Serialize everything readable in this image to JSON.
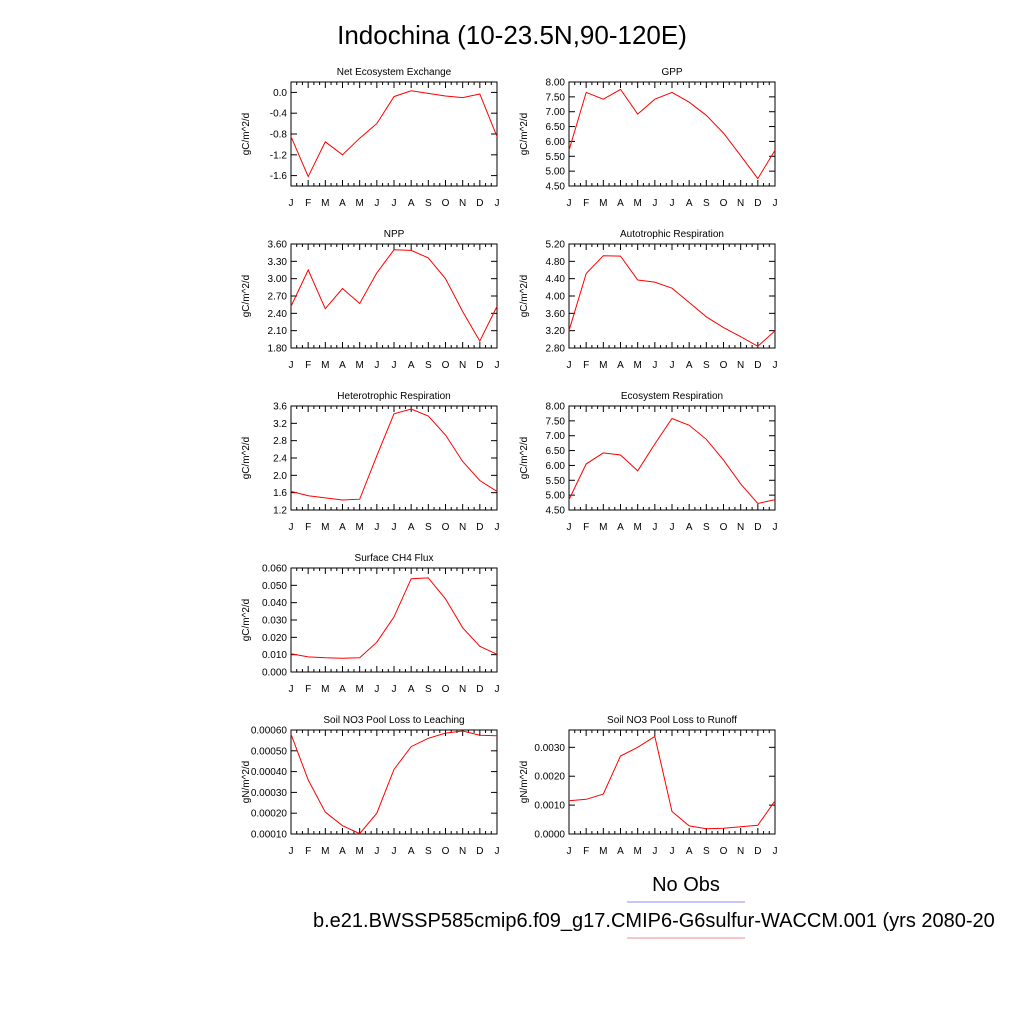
{
  "title": "Indochina (10-23.5N,90-120E)",
  "legend": {
    "obs_label": "No Obs",
    "obs_color": "#8c8cf0",
    "model_label": "b.e21.BWSSP585cmip6.f09_g17.CMIP6-G6sulfur-WACCM.001 (yrs 2080-20",
    "model_color": "#f08c8c"
  },
  "line_color": "#ff0000",
  "chart_data": [
    {
      "type": "line",
      "title": "Net Ecosystem Exchange",
      "ylabel": "gC/m^2/d",
      "categories": [
        "J",
        "F",
        "M",
        "A",
        "M",
        "J",
        "J",
        "A",
        "S",
        "O",
        "N",
        "D",
        "J"
      ],
      "ylim": [
        -1.8,
        0.2
      ],
      "yticks": [
        "0.0",
        "-0.4",
        "-0.8",
        "-1.2",
        "-1.6"
      ],
      "series": [
        {
          "values": [
            -0.85,
            -1.62,
            -0.95,
            -1.2,
            -0.88,
            -0.6,
            -0.08,
            0.03,
            -0.02,
            -0.07,
            -0.1,
            -0.03,
            -0.85
          ]
        }
      ]
    },
    {
      "type": "line",
      "title": "GPP",
      "ylabel": "gC/m^2/d",
      "categories": [
        "J",
        "F",
        "M",
        "A",
        "M",
        "J",
        "J",
        "A",
        "S",
        "O",
        "N",
        "D",
        "J"
      ],
      "ylim": [
        4.5,
        8.0
      ],
      "yticks": [
        "8.00",
        "7.50",
        "7.00",
        "6.50",
        "6.00",
        "5.50",
        "5.00",
        "4.50"
      ],
      "series": [
        {
          "values": [
            5.7,
            7.65,
            7.42,
            7.75,
            6.92,
            7.42,
            7.65,
            7.32,
            6.88,
            6.28,
            5.52,
            4.75,
            5.7
          ]
        }
      ]
    },
    {
      "type": "line",
      "title": "NPP",
      "ylabel": "gC/m^2/d",
      "categories": [
        "J",
        "F",
        "M",
        "A",
        "M",
        "J",
        "J",
        "A",
        "S",
        "O",
        "N",
        "D",
        "J"
      ],
      "ylim": [
        1.8,
        3.6
      ],
      "yticks": [
        "3.60",
        "3.30",
        "3.00",
        "2.70",
        "2.40",
        "2.10",
        "1.80"
      ],
      "series": [
        {
          "values": [
            2.52,
            3.15,
            2.48,
            2.83,
            2.57,
            3.1,
            3.5,
            3.49,
            3.36,
            3.0,
            2.43,
            1.92,
            2.52
          ]
        }
      ]
    },
    {
      "type": "line",
      "title": "Autotrophic Respiration",
      "ylabel": "gC/m^2/d",
      "categories": [
        "J",
        "F",
        "M",
        "A",
        "M",
        "J",
        "J",
        "A",
        "S",
        "O",
        "N",
        "D",
        "J"
      ],
      "ylim": [
        2.8,
        5.2
      ],
      "yticks": [
        "5.20",
        "4.80",
        "4.40",
        "4.00",
        "3.60",
        "3.20",
        "2.80"
      ],
      "series": [
        {
          "values": [
            3.2,
            4.52,
            4.93,
            4.92,
            4.37,
            4.32,
            4.18,
            3.85,
            3.52,
            3.27,
            3.06,
            2.84,
            3.2
          ]
        }
      ]
    },
    {
      "type": "line",
      "title": "Heterotrophic Respiration",
      "ylabel": "gC/m^2/d",
      "categories": [
        "J",
        "F",
        "M",
        "A",
        "M",
        "J",
        "J",
        "A",
        "S",
        "O",
        "N",
        "D",
        "J"
      ],
      "ylim": [
        1.2,
        3.6
      ],
      "yticks": [
        "3.6",
        "3.2",
        "2.8",
        "2.4",
        "2.0",
        "1.6",
        "1.2"
      ],
      "series": [
        {
          "values": [
            1.63,
            1.53,
            1.48,
            1.43,
            1.45,
            2.45,
            3.42,
            3.53,
            3.37,
            2.93,
            2.32,
            1.88,
            1.63
          ]
        }
      ]
    },
    {
      "type": "line",
      "title": "Ecosystem Respiration",
      "ylabel": "gC/m^2/d",
      "categories": [
        "J",
        "F",
        "M",
        "A",
        "M",
        "J",
        "J",
        "A",
        "S",
        "O",
        "N",
        "D",
        "J"
      ],
      "ylim": [
        4.5,
        8.0
      ],
      "yticks": [
        "8.00",
        "7.50",
        "7.00",
        "6.50",
        "6.00",
        "5.50",
        "5.00",
        "4.50"
      ],
      "series": [
        {
          "values": [
            4.85,
            6.05,
            6.42,
            6.35,
            5.82,
            6.72,
            7.58,
            7.35,
            6.88,
            6.18,
            5.38,
            4.72,
            4.85
          ]
        }
      ]
    },
    {
      "type": "line",
      "title": "Surface CH4 Flux",
      "ylabel": "gC/m^2/d",
      "categories": [
        "J",
        "F",
        "M",
        "A",
        "M",
        "J",
        "J",
        "A",
        "S",
        "O",
        "N",
        "D",
        "J"
      ],
      "ylim": [
        0.0,
        0.06
      ],
      "yticks": [
        "0.060",
        "0.050",
        "0.040",
        "0.030",
        "0.020",
        "0.010",
        "0.000"
      ],
      "series": [
        {
          "values": [
            0.0105,
            0.0087,
            0.0082,
            0.0079,
            0.0082,
            0.0172,
            0.0318,
            0.0538,
            0.0543,
            0.0422,
            0.0255,
            0.0148,
            0.0102
          ]
        }
      ]
    },
    {
      "type": "line",
      "title": "Soil NO3 Pool Loss to Leaching",
      "ylabel": "gN/m^2/d",
      "categories": [
        "J",
        "F",
        "M",
        "A",
        "M",
        "J",
        "J",
        "A",
        "S",
        "O",
        "N",
        "D",
        "J"
      ],
      "ylim": [
        0.0001,
        0.0006
      ],
      "yticks": [
        "0.00060",
        "0.00050",
        "0.00040",
        "0.00030",
        "0.00020",
        "0.00010"
      ],
      "series": [
        {
          "values": [
            0.00058,
            0.00036,
            0.000205,
            0.00014,
            0.000102,
            0.0002,
            0.00041,
            0.00052,
            0.00056,
            0.000585,
            0.000595,
            0.000575,
            0.000572
          ]
        }
      ]
    },
    {
      "type": "line",
      "title": "Soil NO3 Pool Loss to Runoff",
      "ylabel": "gN/m^2/d",
      "categories": [
        "J",
        "F",
        "M",
        "A",
        "M",
        "J",
        "J",
        "A",
        "S",
        "O",
        "N",
        "D",
        "J"
      ],
      "ylim": [
        0.0,
        0.0036
      ],
      "yticks": [
        "0.0030",
        "0.0020",
        "0.0010",
        "0.0000"
      ],
      "ytick_values": [
        0.003,
        0.002,
        0.001,
        0.0
      ],
      "series": [
        {
          "values": [
            0.00115,
            0.0012,
            0.00138,
            0.0027,
            0.003,
            0.00338,
            0.00078,
            0.00028,
            0.00018,
            0.0002,
            0.00025,
            0.0003,
            0.00115
          ]
        }
      ]
    }
  ]
}
